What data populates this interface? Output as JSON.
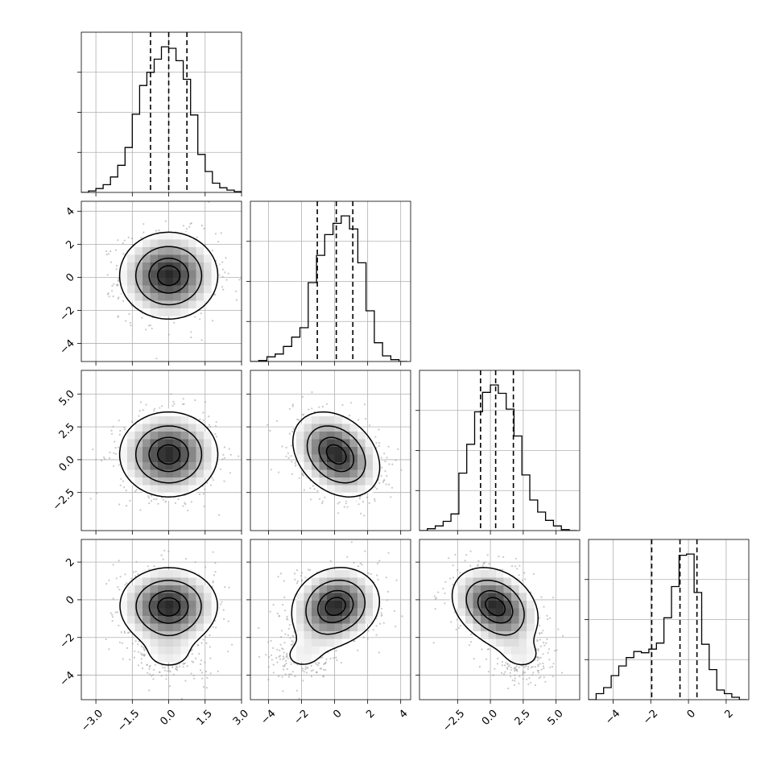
{
  "chart_data": {
    "type": "corner",
    "params": 4,
    "grid": true,
    "colors": {
      "line": "#000000",
      "grid": "#b0b0b0",
      "scatter": "#9a9a9a",
      "background": "#ffffff"
    },
    "ranges": [
      [
        -3.6,
        3.0
      ],
      [
        -5.1,
        4.6
      ],
      [
        -5.4,
        6.8
      ],
      [
        -5.3,
        3.2
      ]
    ],
    "tick_labels": [
      [
        "-3.0",
        "-1.5",
        "0.0",
        "1.5",
        "3.0"
      ],
      [
        "-4",
        "-2",
        "0",
        "2",
        "4"
      ],
      [
        "-2.5",
        "0.0",
        "2.5",
        "5.0"
      ],
      [
        "-4",
        "-2",
        "0",
        "2"
      ]
    ],
    "tick_values": [
      [
        -3.0,
        -1.5,
        0.0,
        1.5,
        3.0
      ],
      [
        -4,
        -2,
        0,
        2,
        4
      ],
      [
        -2.5,
        0.0,
        2.5,
        5.0
      ],
      [
        -4,
        -2,
        0,
        2
      ]
    ],
    "quantiles": [
      [
        -0.75,
        0.0,
        0.75
      ],
      [
        -1.05,
        0.1,
        1.1
      ],
      [
        -0.75,
        0.4,
        1.75
      ],
      [
        -1.95,
        -0.45,
        0.45
      ]
    ],
    "histograms": [
      {
        "edges": [
          -3.6,
          -3.3,
          -3.0,
          -2.7,
          -2.4,
          -2.1,
          -1.8,
          -1.5,
          -1.2,
          -0.9,
          -0.6,
          -0.3,
          0.0,
          0.3,
          0.6,
          0.9,
          1.2,
          1.5,
          1.8,
          2.1,
          2.4,
          2.7,
          3.0
        ],
        "counts": [
          0,
          2,
          5,
          10,
          20,
          35,
          58,
          101,
          138,
          155,
          172,
          188,
          186,
          170,
          146,
          100,
          49,
          27,
          12,
          6,
          3,
          1
        ]
      },
      {
        "edges": [
          -5.1,
          -4.6,
          -4.1,
          -3.6,
          -3.1,
          -2.6,
          -2.1,
          -1.6,
          -1.1,
          -0.6,
          -0.1,
          0.4,
          0.9,
          1.4,
          1.9,
          2.4,
          2.9,
          3.4,
          3.9,
          4.4
        ],
        "counts": [
          0,
          1,
          5,
          8,
          16,
          26,
          36,
          84,
          113,
          135,
          147,
          155,
          141,
          105,
          54,
          20,
          6,
          2,
          0
        ]
      },
      {
        "edges": [
          -5.4,
          -4.8,
          -4.2,
          -3.6,
          -3.0,
          -2.4,
          -1.8,
          -1.2,
          -0.6,
          0.0,
          0.6,
          1.2,
          1.8,
          2.4,
          3.0,
          3.6,
          4.2,
          4.8,
          5.4,
          6.0,
          6.6
        ],
        "counts": [
          0,
          2,
          5,
          10,
          18,
          62,
          93,
          128,
          149,
          157,
          148,
          131,
          102,
          60,
          33,
          20,
          11,
          5,
          1,
          0
        ]
      },
      {
        "edges": [
          -5.3,
          -4.9,
          -4.5,
          -4.1,
          -3.7,
          -3.3,
          -2.9,
          -2.5,
          -2.1,
          -1.7,
          -1.3,
          -0.9,
          -0.5,
          -0.1,
          0.3,
          0.7,
          1.1,
          1.5,
          1.9,
          2.3,
          2.7,
          3.1
        ],
        "counts": [
          0,
          5,
          10,
          20,
          28,
          35,
          40,
          39,
          42,
          47,
          68,
          94,
          120,
          121,
          89,
          46,
          25,
          8,
          5,
          2,
          0
        ]
      }
    ],
    "pairs": [
      {
        "x": 0,
        "y": 1,
        "center": [
          0.0,
          0.1
        ],
        "sigma": [
          1.0,
          1.3
        ],
        "rho": 0.0
      },
      {
        "x": 0,
        "y": 2,
        "center": [
          0.0,
          0.4
        ],
        "sigma": [
          1.0,
          1.6
        ],
        "rho": 0.0
      },
      {
        "x": 1,
        "y": 2,
        "center": [
          0.1,
          0.4
        ],
        "sigma": [
          1.3,
          1.6
        ],
        "rho": -0.3
      },
      {
        "x": 0,
        "y": 3,
        "center": [
          0.0,
          -0.3
        ],
        "sigma": [
          1.0,
          1.0
        ],
        "rho": 0.0,
        "tail": [
          0.0,
          -3.0
        ]
      },
      {
        "x": 1,
        "y": 3,
        "center": [
          0.1,
          -0.3
        ],
        "sigma": [
          1.3,
          1.0
        ],
        "rho": 0.1,
        "tail": [
          -2.0,
          -3.0
        ]
      },
      {
        "x": 2,
        "y": 3,
        "center": [
          0.3,
          -0.3
        ],
        "sigma": [
          1.6,
          1.0
        ],
        "rho": -0.25,
        "tail": [
          2.5,
          -3.0
        ]
      }
    ]
  }
}
